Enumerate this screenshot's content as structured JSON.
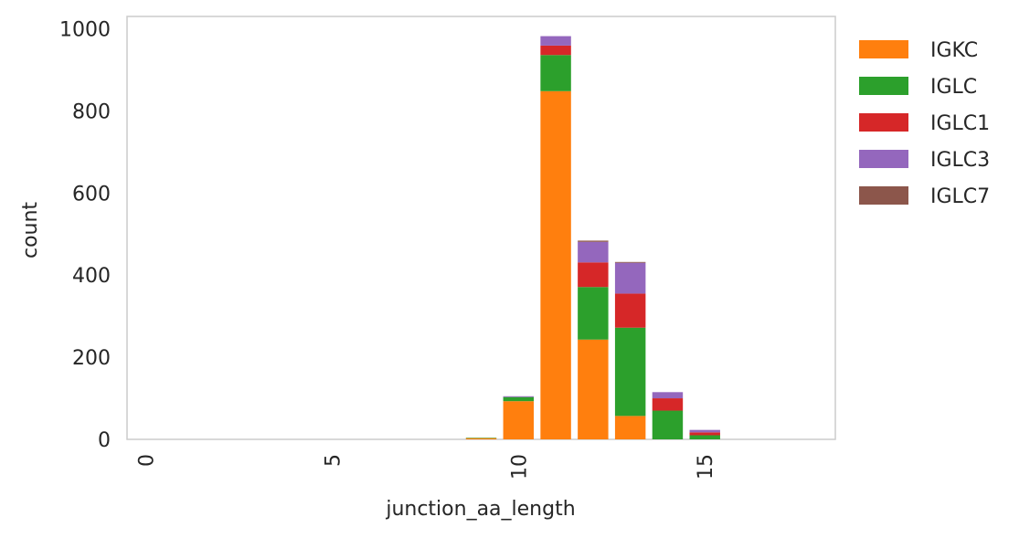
{
  "chart_data": {
    "type": "bar",
    "stacked": true,
    "xlabel": "junction_aa_length",
    "ylabel": "count",
    "xlim": [
      -0.5,
      18.5
    ],
    "ylim": [
      0,
      1030
    ],
    "xticks": [
      0,
      5,
      10,
      15
    ],
    "yticks": [
      0,
      200,
      400,
      600,
      800,
      1000
    ],
    "grid": false,
    "legend_placement": "outside-right",
    "x": [
      9,
      10,
      11,
      12,
      13,
      14,
      15
    ],
    "series": [
      {
        "name": "IGKC",
        "color": "#ff7f0e",
        "values": [
          3,
          93,
          848,
          243,
          57,
          0,
          0
        ]
      },
      {
        "name": "IGLC",
        "color": "#2ca02c",
        "values": [
          1,
          10,
          88,
          128,
          215,
          70,
          10
        ]
      },
      {
        "name": "IGLC1",
        "color": "#d62728",
        "values": [
          0,
          0,
          23,
          60,
          83,
          30,
          7
        ]
      },
      {
        "name": "IGLC3",
        "color": "#9467bd",
        "values": [
          0,
          2,
          23,
          50,
          75,
          15,
          6
        ]
      },
      {
        "name": "IGLC7",
        "color": "#8c564b",
        "values": [
          0,
          0,
          0,
          3,
          2,
          0,
          0
        ]
      }
    ]
  }
}
